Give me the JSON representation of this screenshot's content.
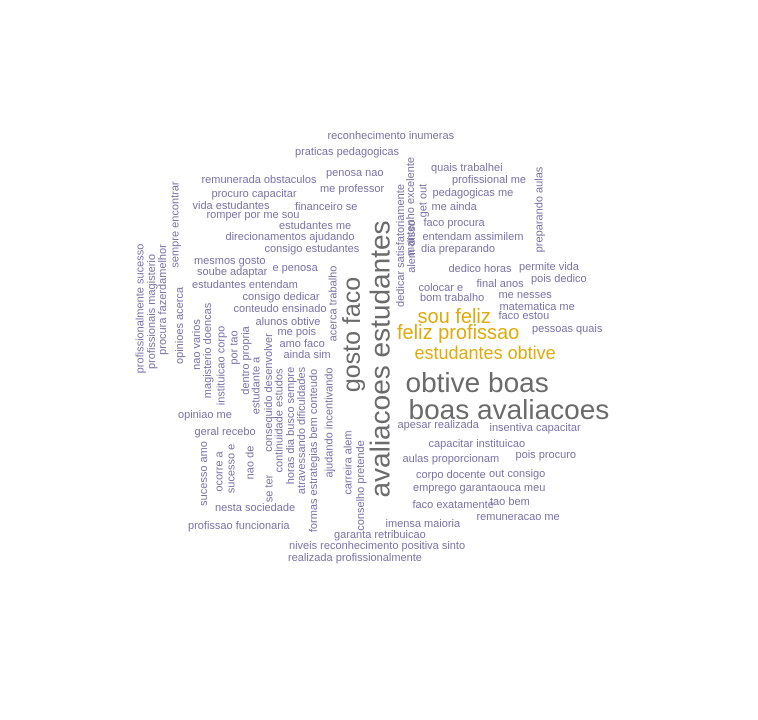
{
  "colors": {
    "small": "#7b72a6",
    "medium": "#e0aa0c",
    "large": "#6b6b6b"
  },
  "words": [
    {
      "text": "reconhecimento inumeras",
      "tier": "small"
    },
    {
      "text": "praticas pedagogicas",
      "tier": "small"
    },
    {
      "text": "quais trabalhei",
      "tier": "small"
    },
    {
      "text": "penosa nao",
      "tier": "small"
    },
    {
      "text": "profissional me",
      "tier": "small"
    },
    {
      "text": "remunerada obstaculos",
      "tier": "small"
    },
    {
      "text": "me professor",
      "tier": "small"
    },
    {
      "text": "pedagogicas me",
      "tier": "small"
    },
    {
      "text": "procuro capacitar",
      "tier": "small"
    },
    {
      "text": "vida estudantes",
      "tier": "small"
    },
    {
      "text": "financeiro se",
      "tier": "small"
    },
    {
      "text": "me ainda",
      "tier": "small"
    },
    {
      "text": "romper por me sou",
      "tier": "small"
    },
    {
      "text": "estudantes me",
      "tier": "small"
    },
    {
      "text": "faco procura",
      "tier": "small"
    },
    {
      "text": "direcionamentos ajudando",
      "tier": "small"
    },
    {
      "text": "entendam assimilem",
      "tier": "small"
    },
    {
      "text": "consigo estudantes",
      "tier": "small"
    },
    {
      "text": "dia preparando",
      "tier": "small"
    },
    {
      "text": "mesmos gosto",
      "tier": "small"
    },
    {
      "text": "soube adaptar",
      "tier": "small"
    },
    {
      "text": "e penosa",
      "tier": "small"
    },
    {
      "text": "dedico horas",
      "tier": "small"
    },
    {
      "text": "permite vida",
      "tier": "small"
    },
    {
      "text": "pois dedico",
      "tier": "small"
    },
    {
      "text": "estudantes entendam",
      "tier": "small"
    },
    {
      "text": "final anos",
      "tier": "small"
    },
    {
      "text": "colocar e",
      "tier": "small"
    },
    {
      "text": "consigo dedicar",
      "tier": "small"
    },
    {
      "text": "bom trabalho",
      "tier": "small"
    },
    {
      "text": "me nesses",
      "tier": "small"
    },
    {
      "text": "conteudo ensinado",
      "tier": "small"
    },
    {
      "text": "matematica me",
      "tier": "small"
    },
    {
      "text": "faco estou",
      "tier": "small"
    },
    {
      "text": "alunos obtive",
      "tier": "small"
    },
    {
      "text": "me pois",
      "tier": "small"
    },
    {
      "text": "pessoas quais",
      "tier": "small"
    },
    {
      "text": "amo faco",
      "tier": "small"
    },
    {
      "text": "ainda sim",
      "tier": "small"
    },
    {
      "text": "opiniao me",
      "tier": "small"
    },
    {
      "text": "apesar realizada",
      "tier": "small"
    },
    {
      "text": "insentiva capacitar",
      "tier": "small"
    },
    {
      "text": "geral recebo",
      "tier": "small"
    },
    {
      "text": "capacitar instituicao",
      "tier": "small"
    },
    {
      "text": "aulas proporcionam",
      "tier": "small"
    },
    {
      "text": "pois procuro",
      "tier": "small"
    },
    {
      "text": "corpo docente",
      "tier": "small"
    },
    {
      "text": "out consigo",
      "tier": "small"
    },
    {
      "text": "emprego garanta",
      "tier": "small"
    },
    {
      "text": "ouca meu",
      "tier": "small"
    },
    {
      "text": "tao bem",
      "tier": "small"
    },
    {
      "text": "faco exatamente",
      "tier": "small"
    },
    {
      "text": "nesta sociedade",
      "tier": "small"
    },
    {
      "text": "remuneracao me",
      "tier": "small"
    },
    {
      "text": "imensa maioria",
      "tier": "small"
    },
    {
      "text": "profissao funcionaria",
      "tier": "small"
    },
    {
      "text": "garanta retribuicao",
      "tier": "small"
    },
    {
      "text": "niveis reconhecimento positiva sinto",
      "tier": "small"
    },
    {
      "text": "realizada profissionalmente",
      "tier": "small"
    },
    {
      "text": "profissionalmente sucesso",
      "tier": "small"
    },
    {
      "text": "profissionais magisterio",
      "tier": "small"
    },
    {
      "text": "procura fazerdamelhor",
      "tier": "small"
    },
    {
      "text": "sempre encontrar",
      "tier": "small"
    },
    {
      "text": "opinioes acerca",
      "tier": "small"
    },
    {
      "text": "nao varios",
      "tier": "small"
    },
    {
      "text": "magisterio doencas",
      "tier": "small"
    },
    {
      "text": "instituicao corpo",
      "tier": "small"
    },
    {
      "text": "por tao",
      "tier": "small"
    },
    {
      "text": "dentro propria",
      "tier": "small"
    },
    {
      "text": "estudante a",
      "tier": "small"
    },
    {
      "text": "consequido desenvolver",
      "tier": "small"
    },
    {
      "text": "continuidade estudos",
      "tier": "small"
    },
    {
      "text": "horas dia busco sempre",
      "tier": "small"
    },
    {
      "text": "atravessando dificuldades",
      "tier": "small"
    },
    {
      "text": "formas estrategias bem conteudo",
      "tier": "small"
    },
    {
      "text": "acerca trabalho",
      "tier": "small"
    },
    {
      "text": "ajudando incentivando",
      "tier": "small"
    },
    {
      "text": "sucesso amo",
      "tier": "small"
    },
    {
      "text": "ocorre a",
      "tier": "small"
    },
    {
      "text": "sucesso e",
      "tier": "small"
    },
    {
      "text": "nao de",
      "tier": "small"
    },
    {
      "text": "se ter",
      "tier": "small"
    },
    {
      "text": "carreira alem",
      "tier": "small"
    },
    {
      "text": "conselho pretende",
      "tier": "small"
    },
    {
      "text": "preparando aulas",
      "tier": "small"
    },
    {
      "text": "dedicar satisfatoriamente",
      "tier": "small"
    },
    {
      "text": "alem disso",
      "tier": "small"
    },
    {
      "text": "mantenho excelente",
      "tier": "small"
    },
    {
      "text": "get out",
      "tier": "small"
    },
    {
      "text": "sou feliz",
      "tier": "medium"
    },
    {
      "text": "feliz profissao",
      "tier": "medium"
    },
    {
      "text": "estudantes obtive",
      "tier": "medium"
    },
    {
      "text": "gosto faco",
      "tier": "large"
    },
    {
      "text": "avaliacoes estudantes",
      "tier": "large"
    },
    {
      "text": "obtive boas",
      "tier": "large"
    },
    {
      "text": "boas avaliacoes",
      "tier": "large"
    }
  ]
}
